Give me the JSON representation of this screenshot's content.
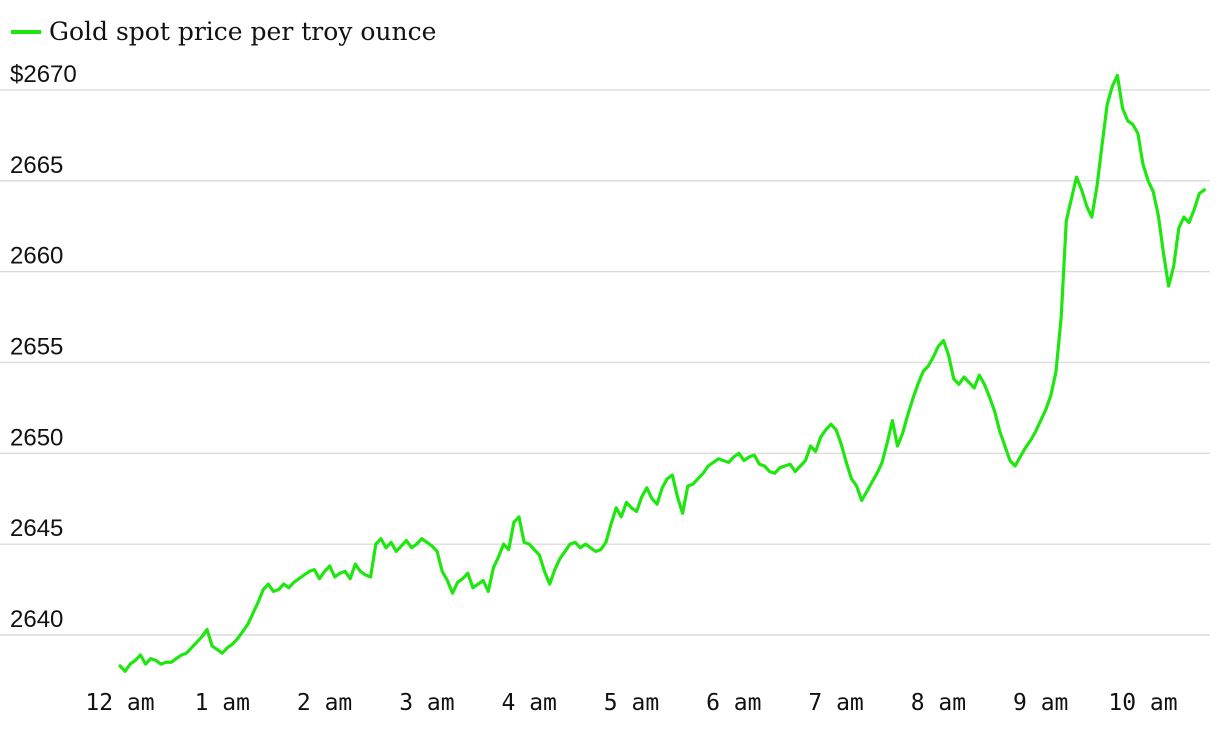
{
  "chart_data": {
    "type": "line",
    "legend": {
      "placement": "top-left",
      "entries": [
        "Gold spot price per troy ounce"
      ]
    },
    "series": [
      {
        "name": "Gold spot price per troy ounce",
        "color": "#1ee60f",
        "x": [
          0,
          0.05,
          0.1,
          0.15,
          0.2,
          0.25,
          0.3,
          0.35,
          0.4,
          0.45,
          0.5,
          0.55,
          0.6,
          0.65,
          0.7,
          0.75,
          0.8,
          0.85,
          0.9,
          0.95,
          1.0,
          1.05,
          1.1,
          1.15,
          1.2,
          1.25,
          1.3,
          1.35,
          1.4,
          1.45,
          1.5,
          1.55,
          1.6,
          1.65,
          1.7,
          1.75,
          1.8,
          1.85,
          1.9,
          1.95,
          2.0,
          2.05,
          2.1,
          2.15,
          2.2,
          2.25,
          2.3,
          2.35,
          2.4,
          2.45,
          2.5,
          2.55,
          2.6,
          2.65,
          2.7,
          2.75,
          2.8,
          2.85,
          2.9,
          2.95,
          3.0,
          3.05,
          3.1,
          3.15,
          3.2,
          3.25,
          3.3,
          3.35,
          3.4,
          3.45,
          3.5,
          3.55,
          3.6,
          3.65,
          3.7,
          3.75,
          3.8,
          3.85,
          3.9,
          3.95,
          4.0,
          4.05,
          4.1,
          4.15,
          4.2,
          4.25,
          4.3,
          4.35,
          4.4,
          4.45,
          4.5,
          4.55,
          4.6,
          4.65,
          4.7,
          4.75,
          4.8,
          4.85,
          4.9,
          4.95,
          5.0,
          5.05,
          5.1,
          5.15,
          5.2,
          5.25,
          5.3,
          5.35,
          5.4,
          5.45,
          5.5,
          5.55,
          5.6,
          5.65,
          5.7,
          5.75,
          5.8,
          5.85,
          5.9,
          5.95,
          6.0,
          6.05,
          6.1,
          6.15,
          6.2,
          6.25,
          6.3,
          6.35,
          6.4,
          6.45,
          6.5,
          6.55,
          6.6,
          6.65,
          6.7,
          6.75,
          6.8,
          6.85,
          6.9,
          6.95,
          7.0,
          7.05,
          7.1,
          7.15,
          7.2,
          7.25,
          7.3,
          7.35,
          7.4,
          7.45,
          7.5,
          7.55,
          7.6,
          7.65,
          7.7,
          7.75,
          7.8,
          7.85,
          7.9,
          7.95,
          8.0,
          8.05,
          8.1,
          8.15,
          8.2,
          8.25,
          8.3,
          8.35,
          8.4,
          8.45,
          8.5,
          8.55,
          8.6,
          8.65,
          8.7,
          8.75,
          8.8,
          8.85,
          8.9,
          8.95,
          9.0,
          9.05,
          9.1,
          9.15,
          9.2,
          9.25,
          9.3,
          9.35,
          9.4,
          9.45,
          9.5,
          9.55,
          9.6,
          9.65,
          9.7,
          9.75,
          9.8,
          9.85,
          9.9,
          9.95,
          10.0,
          10.05,
          10.1,
          10.15,
          10.2,
          10.25,
          10.3,
          10.35,
          10.4,
          10.45,
          10.5,
          10.55,
          10.6
        ],
        "y": [
          2638.3,
          2638.0,
          2638.4,
          2638.6,
          2638.9,
          2638.4,
          2638.7,
          2638.6,
          2638.4,
          2638.5,
          2638.5,
          2638.7,
          2638.9,
          2639.0,
          2639.3,
          2639.6,
          2639.9,
          2640.3,
          2639.4,
          2639.2,
          2639.0,
          2639.3,
          2639.5,
          2639.8,
          2640.2,
          2640.6,
          2641.2,
          2641.8,
          2642.5,
          2642.8,
          2642.4,
          2642.5,
          2642.8,
          2642.6,
          2642.9,
          2643.1,
          2643.3,
          2643.5,
          2643.6,
          2643.1,
          2643.5,
          2643.8,
          2643.2,
          2643.4,
          2643.5,
          2643.1,
          2643.9,
          2643.5,
          2643.3,
          2643.2,
          2645.0,
          2645.3,
          2644.8,
          2645.1,
          2644.6,
          2644.9,
          2645.2,
          2644.8,
          2645.0,
          2645.3,
          2645.1,
          2644.9,
          2644.6,
          2643.5,
          2643.0,
          2642.3,
          2642.9,
          2643.1,
          2643.4,
          2642.6,
          2642.8,
          2643.0,
          2642.4,
          2643.7,
          2644.3,
          2645.0,
          2644.7,
          2646.2,
          2646.5,
          2645.1,
          2645.0,
          2644.7,
          2644.4,
          2643.5,
          2642.8,
          2643.6,
          2644.2,
          2644.6,
          2645.0,
          2645.1,
          2644.8,
          2645.0,
          2644.8,
          2644.6,
          2644.7,
          2645.1,
          2646.1,
          2647.0,
          2646.5,
          2647.3,
          2647.0,
          2646.8,
          2647.6,
          2648.1,
          2647.5,
          2647.2,
          2648.1,
          2648.6,
          2648.8,
          2647.6,
          2646.7,
          2648.2,
          2648.3,
          2648.6,
          2648.9,
          2649.3,
          2649.5,
          2649.7,
          2649.6,
          2649.5,
          2649.8,
          2650.0,
          2649.6,
          2649.8,
          2649.9,
          2649.4,
          2649.3,
          2649.0,
          2648.9,
          2649.2,
          2649.3,
          2649.4,
          2649.0,
          2649.3,
          2649.6,
          2650.4,
          2650.1,
          2650.9,
          2651.3,
          2651.6,
          2651.3,
          2650.5,
          2649.5,
          2648.6,
          2648.2,
          2647.4,
          2647.9,
          2648.4,
          2648.9,
          2649.5,
          2650.6,
          2651.8,
          2650.4,
          2651.1,
          2652.1,
          2653.0,
          2653.8,
          2654.5,
          2654.8,
          2655.3,
          2655.9,
          2656.2,
          2655.4,
          2654.1,
          2653.8,
          2654.2,
          2653.9,
          2653.6,
          2654.3,
          2653.8,
          2653.1,
          2652.3,
          2651.2,
          2650.4,
          2649.6,
          2649.3,
          2649.8,
          2650.3,
          2650.7,
          2651.2,
          2651.8,
          2652.4,
          2653.2,
          2654.5,
          2657.5,
          2662.8,
          2664.0,
          2665.2,
          2664.5,
          2663.6,
          2663.0,
          2664.7,
          2667.0,
          2669.2,
          2670.2,
          2670.8,
          2669.0,
          2668.3,
          2668.1,
          2667.6,
          2665.9,
          2665.0,
          2664.4,
          2663.1,
          2661.0,
          2659.2,
          2660.3,
          2662.4,
          2663.0,
          2662.7,
          2663.4,
          2664.3,
          2664.5
        ]
      }
    ],
    "x_ticks": [
      {
        "value": 0,
        "label": "12 am"
      },
      {
        "value": 1,
        "label": "1 am"
      },
      {
        "value": 2,
        "label": "2 am"
      },
      {
        "value": 3,
        "label": "3 am"
      },
      {
        "value": 4,
        "label": "4 am"
      },
      {
        "value": 5,
        "label": "5 am"
      },
      {
        "value": 6,
        "label": "6 am"
      },
      {
        "value": 7,
        "label": "7 am"
      },
      {
        "value": 8,
        "label": "8 am"
      },
      {
        "value": 9,
        "label": "9 am"
      },
      {
        "value": 10,
        "label": "10 am"
      }
    ],
    "y_ticks": [
      {
        "value": 2640,
        "label": "2640"
      },
      {
        "value": 2645,
        "label": "2645"
      },
      {
        "value": 2650,
        "label": "2650"
      },
      {
        "value": 2655,
        "label": "2655"
      },
      {
        "value": 2660,
        "label": "2660"
      },
      {
        "value": 2665,
        "label": "2665"
      },
      {
        "value": 2670,
        "label": "$2670"
      }
    ],
    "xlim": [
      0,
      11
    ],
    "ylim": [
      2637.7,
      2672
    ],
    "grid": {
      "horizontal": true,
      "vertical": false
    }
  }
}
